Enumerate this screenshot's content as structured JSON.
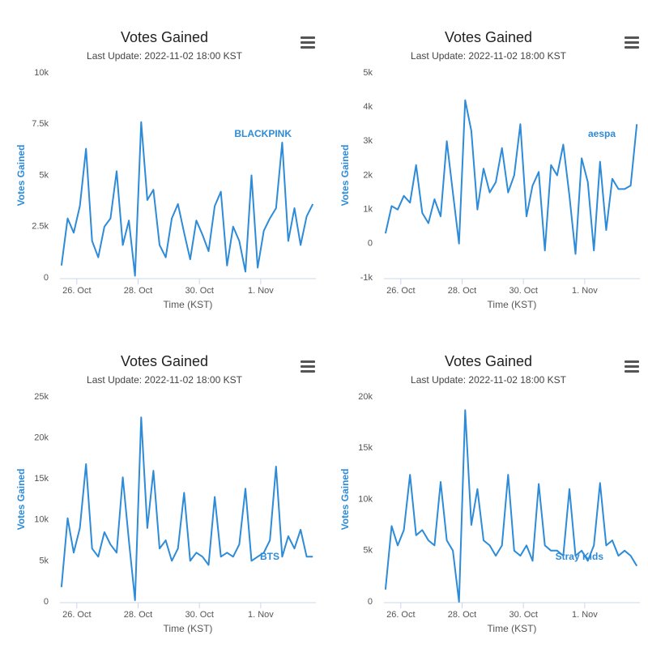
{
  "chart_data": [
    {
      "type": "line",
      "title": "Votes Gained",
      "subtitle": "Last Update: 2022-11-02 18:00 KST",
      "x_label": "Time (KST)",
      "y_label": "Votes Gained",
      "legend": "upper right",
      "grid": false,
      "x": [
        0.5,
        0.7,
        0.9,
        1.1,
        1.3,
        1.5,
        1.7,
        1.9,
        2.1,
        2.3,
        2.5,
        2.7,
        2.9,
        3.1,
        3.3,
        3.5,
        3.7,
        3.9,
        4.1,
        4.3,
        4.5,
        4.7,
        4.9,
        5.1,
        5.3,
        5.5,
        5.7,
        5.9,
        6.1,
        6.3,
        6.5,
        6.7,
        6.9,
        7.1,
        7.3,
        7.5,
        7.7,
        7.9,
        8.1,
        8.3,
        8.5,
        8.7
      ],
      "xlim": [
        0.45,
        8.8
      ],
      "xticks": [
        {
          "value": 1,
          "label": "26. Oct"
        },
        {
          "value": 3,
          "label": "28. Oct"
        },
        {
          "value": 5,
          "label": "30. Oct"
        },
        {
          "value": 7,
          "label": "1. Nov"
        }
      ],
      "ylim": [
        0,
        10000
      ],
      "yticks": [
        0,
        {
          "value": 2500,
          "label": "2.5k"
        },
        {
          "value": 5000,
          "label": "5k"
        },
        {
          "value": 7500,
          "label": "7.5k"
        },
        {
          "value": 10000,
          "label": "10k"
        }
      ],
      "series": [
        {
          "name": "BLACKPINK",
          "color": "#2d8bd8",
          "values": [
            600,
            2900,
            2200,
            3500,
            6300,
            1800,
            1000,
            2500,
            2900,
            5200,
            1600,
            2800,
            100,
            7600,
            3800,
            4300,
            1600,
            1000,
            2900,
            3600,
            2200,
            900,
            2800,
            2100,
            1300,
            3500,
            4200,
            600,
            2500,
            1800,
            300,
            5000,
            500,
            2300,
            2900,
            3400,
            6600,
            1800,
            3400,
            1600,
            3000,
            3600
          ]
        }
      ]
    },
    {
      "type": "line",
      "title": "Votes Gained",
      "subtitle": "Last Update: 2022-11-02 18:00 KST",
      "x_label": "Time (KST)",
      "y_label": "Votes Gained",
      "legend": "upper right",
      "grid": false,
      "x": [
        0.5,
        0.7,
        0.9,
        1.1,
        1.3,
        1.5,
        1.7,
        1.9,
        2.1,
        2.3,
        2.5,
        2.7,
        2.9,
        3.1,
        3.3,
        3.5,
        3.7,
        3.9,
        4.1,
        4.3,
        4.5,
        4.7,
        4.9,
        5.1,
        5.3,
        5.5,
        5.7,
        5.9,
        6.1,
        6.3,
        6.5,
        6.7,
        6.9,
        7.1,
        7.3,
        7.5,
        7.7,
        7.9,
        8.1,
        8.3,
        8.5,
        8.7
      ],
      "xlim": [
        0.45,
        8.8
      ],
      "xticks": [
        {
          "value": 1,
          "label": "26. Oct"
        },
        {
          "value": 3,
          "label": "28. Oct"
        },
        {
          "value": 5,
          "label": "30. Oct"
        },
        {
          "value": 7,
          "label": "1. Nov"
        }
      ],
      "ylim": [
        -1000,
        5000
      ],
      "yticks": [
        {
          "value": -1000,
          "label": "-1k"
        },
        0,
        {
          "value": 1000,
          "label": "1k"
        },
        {
          "value": 2000,
          "label": "2k"
        },
        {
          "value": 3000,
          "label": "3k"
        },
        {
          "value": 4000,
          "label": "4k"
        },
        {
          "value": 5000,
          "label": "5k"
        }
      ],
      "series": [
        {
          "name": "aespa",
          "color": "#2d8bd8",
          "values": [
            300,
            1100,
            1000,
            1400,
            1200,
            2300,
            900,
            600,
            1300,
            800,
            3000,
            1500,
            0,
            4200,
            3300,
            1000,
            2200,
            1500,
            1800,
            2800,
            1500,
            2000,
            3500,
            800,
            1700,
            2100,
            -200,
            2300,
            2000,
            2900,
            1400,
            -300,
            2500,
            1800,
            -200,
            2400,
            400,
            1900,
            1600,
            1600,
            1700,
            3500
          ]
        }
      ]
    },
    {
      "type": "line",
      "title": "Votes Gained",
      "subtitle": "Last Update: 2022-11-02 18:00 KST",
      "x_label": "Time (KST)",
      "y_label": "Votes Gained",
      "legend": "lower right",
      "grid": false,
      "x": [
        0.5,
        0.7,
        0.9,
        1.1,
        1.3,
        1.5,
        1.7,
        1.9,
        2.1,
        2.3,
        2.5,
        2.7,
        2.9,
        3.1,
        3.3,
        3.5,
        3.7,
        3.9,
        4.1,
        4.3,
        4.5,
        4.7,
        4.9,
        5.1,
        5.3,
        5.5,
        5.7,
        5.9,
        6.1,
        6.3,
        6.5,
        6.7,
        6.9,
        7.1,
        7.3,
        7.5,
        7.7,
        7.9,
        8.1,
        8.3,
        8.5,
        8.7
      ],
      "xlim": [
        0.45,
        8.8
      ],
      "xticks": [
        {
          "value": 1,
          "label": "26. Oct"
        },
        {
          "value": 3,
          "label": "28. Oct"
        },
        {
          "value": 5,
          "label": "30. Oct"
        },
        {
          "value": 7,
          "label": "1. Nov"
        }
      ],
      "ylim": [
        0,
        25000
      ],
      "yticks": [
        0,
        {
          "value": 5000,
          "label": "5k"
        },
        {
          "value": 10000,
          "label": "10k"
        },
        {
          "value": 15000,
          "label": "15k"
        },
        {
          "value": 20000,
          "label": "20k"
        },
        {
          "value": 25000,
          "label": "25k"
        }
      ],
      "series": [
        {
          "name": "BTS",
          "color": "#2d8bd8",
          "values": [
            1800,
            10200,
            6000,
            9000,
            16800,
            6500,
            5500,
            8500,
            7000,
            6000,
            15200,
            7500,
            200,
            22500,
            9000,
            16000,
            6500,
            7500,
            5000,
            6500,
            13300,
            5000,
            6000,
            5500,
            4500,
            12800,
            5500,
            6000,
            5500,
            7000,
            13800,
            5000,
            5500,
            6000,
            7500,
            16500,
            5500,
            8000,
            6500,
            8800,
            5500,
            5500
          ]
        }
      ]
    },
    {
      "type": "line",
      "title": "Votes Gained",
      "subtitle": "Last Update: 2022-11-02 18:00 KST",
      "x_label": "Time (KST)",
      "y_label": "Votes Gained",
      "legend": "lower right",
      "grid": false,
      "x": [
        0.5,
        0.7,
        0.9,
        1.1,
        1.3,
        1.5,
        1.7,
        1.9,
        2.1,
        2.3,
        2.5,
        2.7,
        2.9,
        3.1,
        3.3,
        3.5,
        3.7,
        3.9,
        4.1,
        4.3,
        4.5,
        4.7,
        4.9,
        5.1,
        5.3,
        5.5,
        5.7,
        5.9,
        6.1,
        6.3,
        6.5,
        6.7,
        6.9,
        7.1,
        7.3,
        7.5,
        7.7,
        7.9,
        8.1,
        8.3,
        8.5,
        8.7
      ],
      "xlim": [
        0.45,
        8.8
      ],
      "xticks": [
        {
          "value": 1,
          "label": "26. Oct"
        },
        {
          "value": 3,
          "label": "28. Oct"
        },
        {
          "value": 5,
          "label": "30. Oct"
        },
        {
          "value": 7,
          "label": "1. Nov"
        }
      ],
      "ylim": [
        0,
        20000
      ],
      "yticks": [
        0,
        {
          "value": 5000,
          "label": "5k"
        },
        {
          "value": 10000,
          "label": "10k"
        },
        {
          "value": 15000,
          "label": "15k"
        },
        {
          "value": 20000,
          "label": "20k"
        }
      ],
      "series": [
        {
          "name": "Stray Kids",
          "color": "#2d8bd8",
          "values": [
            1200,
            7400,
            5500,
            7000,
            12400,
            6500,
            7000,
            6000,
            5500,
            11700,
            6000,
            5000,
            0,
            18700,
            7500,
            11000,
            6000,
            5500,
            4500,
            5500,
            12400,
            5000,
            4500,
            5500,
            4000,
            11500,
            5500,
            5000,
            5000,
            4500,
            11000,
            4500,
            5000,
            4000,
            5500,
            11600,
            5500,
            6000,
            4500,
            5000,
            4500,
            3500
          ]
        }
      ]
    }
  ]
}
